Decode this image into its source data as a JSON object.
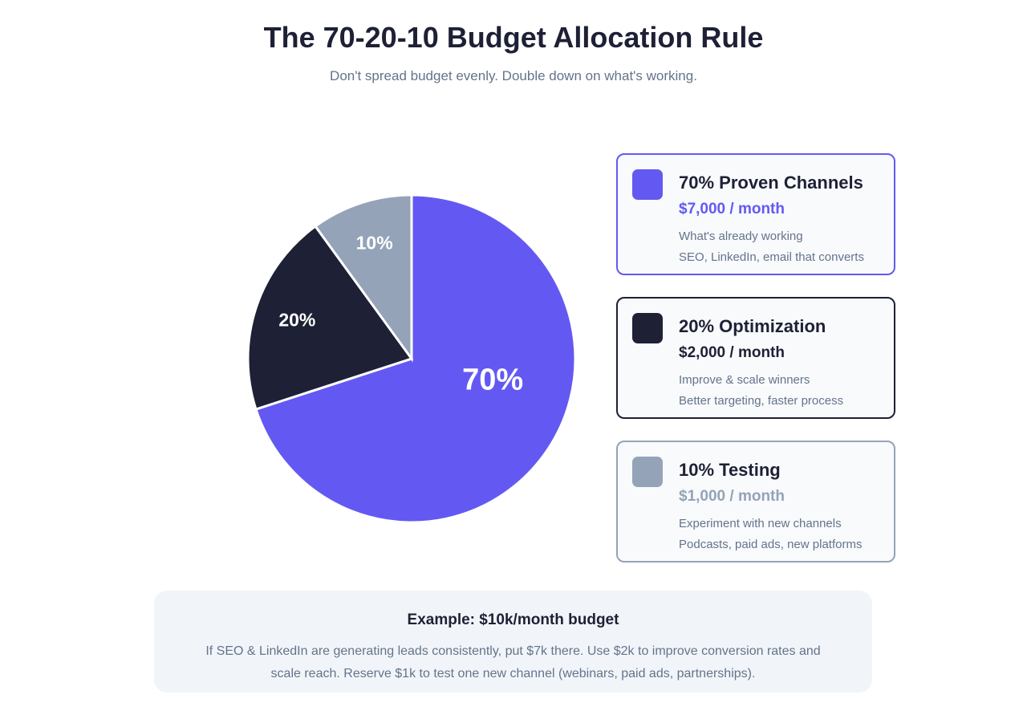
{
  "chart_data": {
    "type": "pie",
    "title": "The 70-20-10 Budget Allocation Rule",
    "subtitle": "Don't spread budget evenly. Double down on what's working.",
    "categories": [
      "70% Proven Channels",
      "20% Optimization",
      "10% Testing"
    ],
    "values": [
      70,
      20,
      10
    ],
    "value_labels": [
      "70%",
      "20%",
      "10%"
    ],
    "colors": [
      "#6359f2",
      "#1e2035",
      "#94a3b8"
    ],
    "amounts": [
      "$7,000 / month",
      "$2,000 / month",
      "$1,000 / month"
    ],
    "descriptions": [
      [
        "What's already working",
        "SEO, LinkedIn, email that converts"
      ],
      [
        "Improve & scale winners",
        "Better targeting, faster process"
      ],
      [
        "Experiment with new channels",
        "Podcasts, paid ads, new platforms"
      ]
    ]
  },
  "example": {
    "title": "Example: $10k/month budget",
    "text": "If SEO & LinkedIn are generating leads consistently, put $7k there. Use $2k to improve conversion rates and scale reach. Reserve $1k to test one new channel (webinars, paid ads, partnerships)."
  }
}
